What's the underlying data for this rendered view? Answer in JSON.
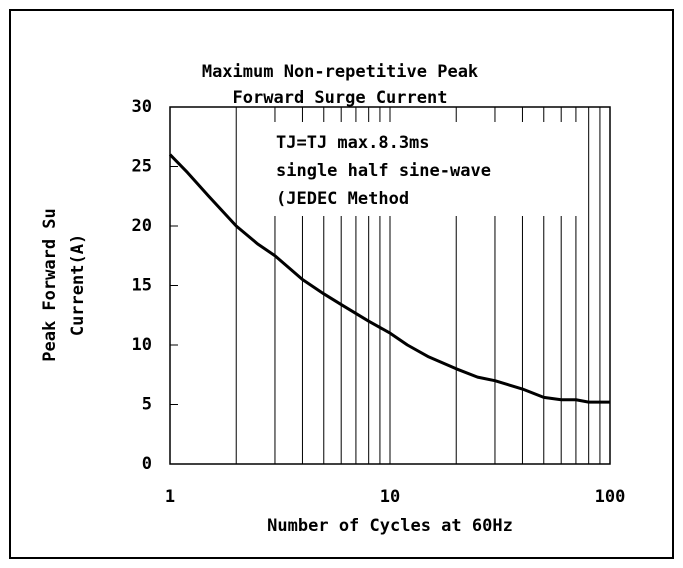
{
  "chart_data": {
    "type": "line",
    "title": [
      "Maximum Non-repetitive Peak",
      "Forward Surge Current"
    ],
    "x_label": "Number of Cycles at 60Hz",
    "y_label": [
      "Peak Forward Su",
      "Current(A)"
    ],
    "annotation": [
      "TJ=TJ max.8.3ms",
      "single half sine-wave",
      "(JEDEC Method"
    ],
    "x": [
      1,
      1.2,
      1.5,
      2,
      2.5,
      3,
      4,
      5,
      6,
      8,
      10,
      12,
      15,
      20,
      25,
      30,
      40,
      50,
      60,
      70,
      80,
      100
    ],
    "series": [
      {
        "name": "Surge Current",
        "color": "#000000",
        "values": [
          26,
          24.5,
          22.5,
          20,
          18.5,
          17.5,
          15.5,
          14.3,
          13.4,
          12,
          11,
          10,
          9,
          8,
          7.3,
          7,
          6.3,
          5.6,
          5.4,
          5.4,
          5.2,
          5.2
        ]
      }
    ],
    "xlim": [
      1,
      100
    ],
    "xticks": [
      1,
      10,
      100
    ],
    "x_log": true,
    "xgrid": [
      2,
      3,
      4,
      5,
      6,
      7,
      8,
      9,
      20,
      30,
      40,
      50,
      60,
      70,
      80,
      90
    ],
    "ylim": [
      0,
      30
    ],
    "yticks": [
      0,
      5,
      10,
      15,
      20,
      25,
      30
    ],
    "grid": true
  }
}
